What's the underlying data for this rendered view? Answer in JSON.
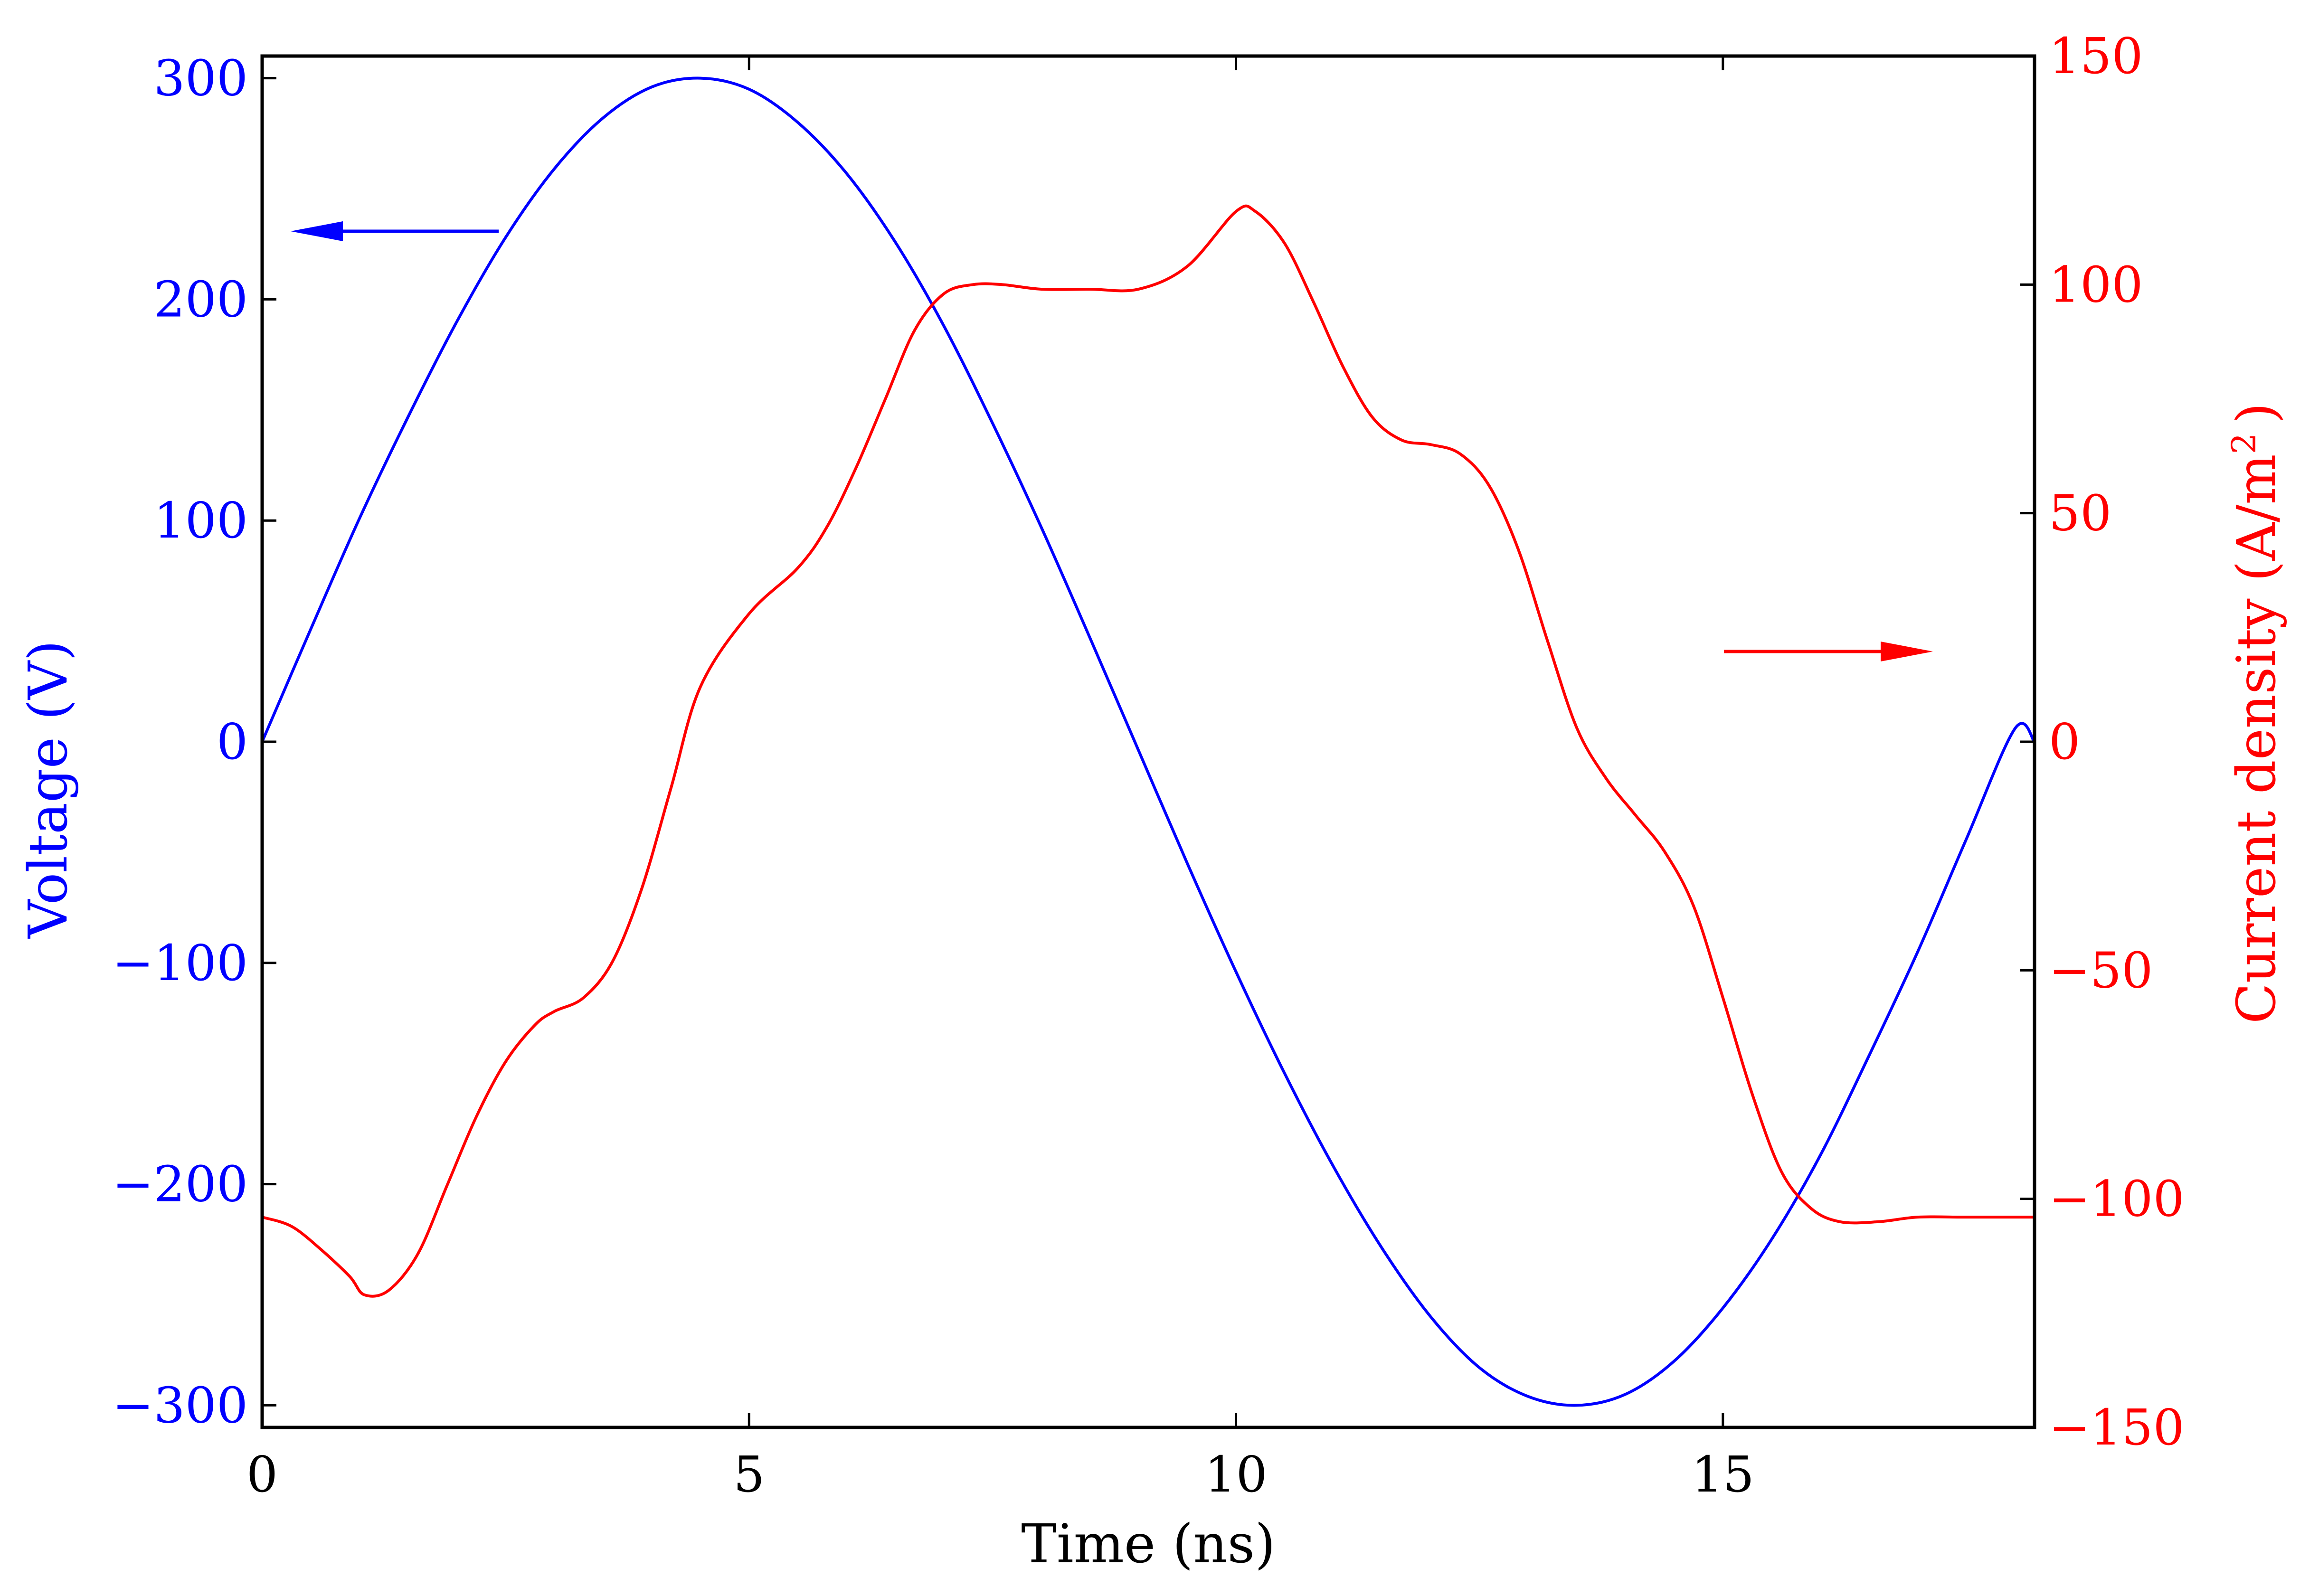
{
  "chart_data": {
    "type": "line",
    "x_axis": {
      "label": "Time (ns)",
      "range": [
        0,
        18.2
      ],
      "ticks": [
        0,
        5,
        10,
        15
      ],
      "tick_labels": [
        "0",
        "5",
        "10",
        "15"
      ]
    },
    "y_axis_left": {
      "label": "Voltage (V)",
      "color": "#0000ff",
      "range": [
        -310,
        310
      ],
      "ticks": [
        -300,
        -200,
        -100,
        0,
        100,
        200,
        300
      ],
      "tick_labels": [
        "−300",
        "−200",
        "−100",
        "0",
        "100",
        "200",
        "300"
      ]
    },
    "y_axis_right": {
      "label": "Current density (A/m",
      "label_superscript": "2",
      "label_suffix": ")",
      "color": "#ff0000",
      "range": [
        -150,
        150
      ],
      "ticks": [
        -150,
        -100,
        -50,
        0,
        50,
        100,
        150
      ],
      "tick_labels": [
        "−150",
        "−100",
        "−50",
        "0",
        "50",
        "100",
        "150"
      ]
    },
    "series": [
      {
        "axis": "left",
        "color": "#0000ff",
        "x": [
          0,
          0.5,
          1,
          1.5,
          2,
          2.5,
          3,
          3.5,
          4,
          4.5,
          5,
          5.5,
          6,
          6.5,
          7,
          7.5,
          8,
          8.5,
          9,
          9.5,
          10,
          10.5,
          11,
          11.5,
          12,
          12.5,
          13,
          13.5,
          14,
          14.5,
          15,
          15.5,
          16,
          16.5,
          17,
          17.5,
          18,
          18.2
        ],
        "y": [
          0,
          51,
          101,
          147,
          190,
          228,
          259,
          282,
          296,
          300,
          295,
          280,
          257,
          226,
          188,
          144,
          97,
          47,
          -4,
          -55,
          -104,
          -150,
          -192,
          -229,
          -260,
          -283,
          -296,
          -300,
          -295,
          -280,
          -256,
          -225,
          -187,
          -142,
          -95,
          -44,
          6,
          0
        ]
      },
      {
        "axis": "right",
        "color": "#ff0000",
        "x": [
          0,
          0.3,
          0.6,
          0.9,
          1.05,
          1.3,
          1.6,
          1.9,
          2.2,
          2.5,
          2.8,
          3.0,
          3.3,
          3.6,
          3.9,
          4.2,
          4.5,
          5.0,
          5.5,
          5.8,
          6.1,
          6.4,
          6.7,
          7.0,
          7.3,
          7.6,
          8.0,
          8.5,
          9.0,
          9.5,
          10.0,
          10.2,
          10.5,
          10.8,
          11.1,
          11.4,
          11.7,
          12.0,
          12.3,
          12.6,
          12.9,
          13.2,
          13.5,
          13.8,
          14.1,
          14.4,
          14.7,
          15.0,
          15.3,
          15.6,
          15.9,
          16.2,
          16.6,
          17.0,
          17.5,
          18.0,
          18.2
        ],
        "y": [
          -104,
          -106,
          -111,
          -117,
          -121,
          -120,
          -112,
          -97,
          -82,
          -70,
          -62,
          -59,
          -56,
          -48,
          -32,
          -10,
          12,
          28,
          38,
          47,
          60,
          75,
          90,
          98,
          100,
          100,
          99,
          99,
          99,
          104,
          116,
          116,
          109,
          96,
          82,
          71,
          66,
          65,
          63,
          56,
          42,
          22,
          3,
          -8,
          -16,
          -24,
          -36,
          -56,
          -77,
          -94,
          -102,
          -105,
          -105,
          -104,
          -104,
          -104,
          -104
        ]
      }
    ],
    "annotations": [
      {
        "type": "arrow",
        "direction": "left",
        "color": "#0000ff",
        "meaning": "points to left axis"
      },
      {
        "type": "arrow",
        "direction": "right",
        "color": "#ff0000",
        "meaning": "points to right axis"
      }
    ],
    "grid": false,
    "legend": "none"
  }
}
